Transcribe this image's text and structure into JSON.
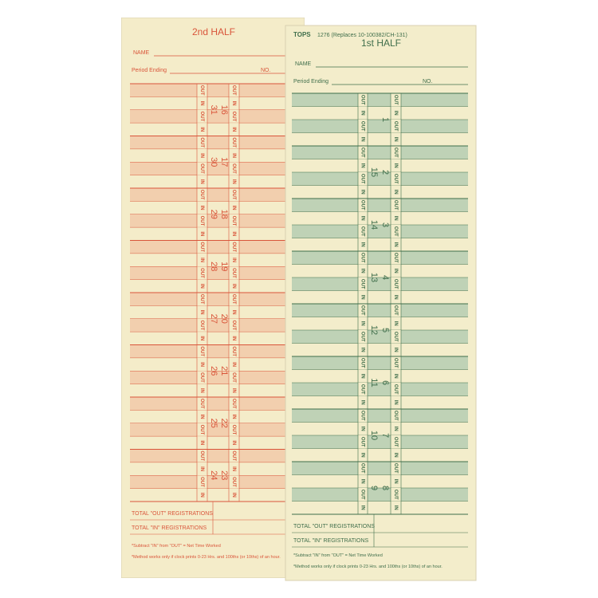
{
  "cards": [
    {
      "half": "2nd HALF",
      "name_label": "NAME",
      "period_label": "Period Ending",
      "no_label": "NO.",
      "out": "OUT",
      "in": "IN",
      "blocks": [
        [
          "31",
          "16"
        ],
        [
          "30",
          "17"
        ],
        [
          "29",
          "18"
        ],
        [
          "28",
          "19"
        ],
        [
          "27",
          "20"
        ],
        [
          "26",
          "21"
        ],
        [
          "25",
          "22"
        ],
        [
          "24",
          "23"
        ]
      ],
      "total_out": "TOTAL \"OUT\" REGISTRATIONS",
      "total_in": "TOTAL \"IN\" REGISTRATIONS",
      "note1": "*Subtract \"IN\" from \"OUT\" = Net Time Worked",
      "note2": "*Method works only if clock prints 0-23 Hrs. and 100ths (or 10ths) of an hour."
    },
    {
      "brand": "TOPS",
      "code": "1276 (Replaces 10-100382/CH-131)",
      "half": "1st HALF",
      "name_label": "NAME",
      "period_label": "Period Ending",
      "no_label": "NO.",
      "out": "OUT",
      "in": "IN",
      "blocks": [
        [
          null,
          "1"
        ],
        [
          "15",
          "2"
        ],
        [
          "14",
          "3"
        ],
        [
          "13",
          "4"
        ],
        [
          "12",
          "5"
        ],
        [
          "11",
          "6"
        ],
        [
          "10",
          "7"
        ],
        [
          "9",
          "8"
        ]
      ],
      "total_out": "TOTAL \"OUT\" REGISTRATIONS",
      "total_in": "TOTAL \"IN\" REGISTRATIONS",
      "note1": "*Subtract \"IN\" from \"OUT\" = Net Time Worked",
      "note2": "*Method works only if clock prints 0-23 Hrs. and 100ths (or 10ths) of an hour."
    }
  ]
}
